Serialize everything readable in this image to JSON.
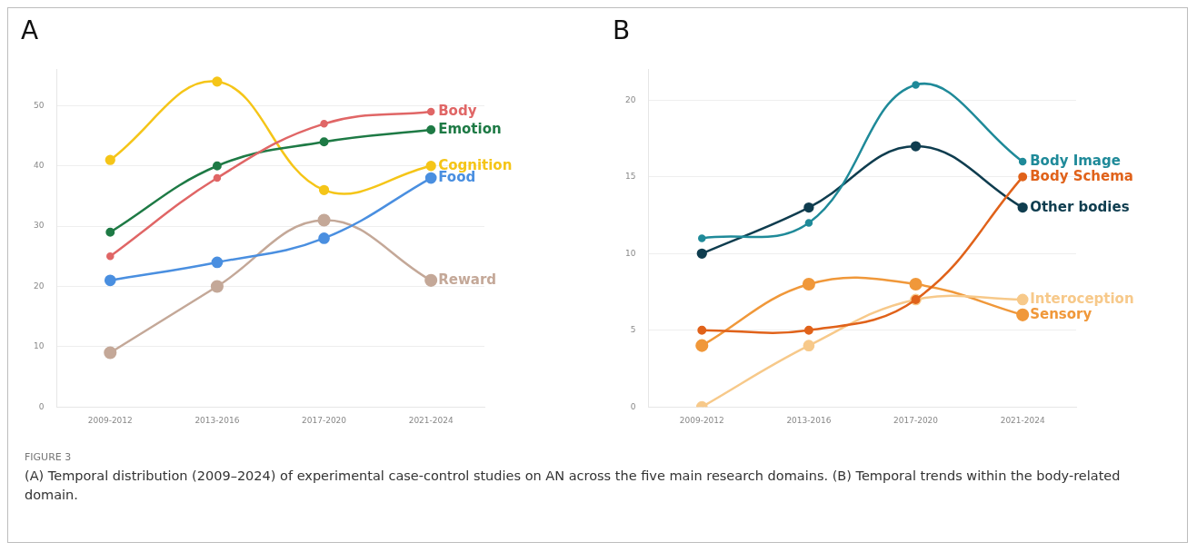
{
  "chart_data": [
    {
      "type": "line",
      "title": "A",
      "categories": [
        "2009-2012",
        "2013-2016",
        "2017-2020",
        "2021-2024"
      ],
      "ylim": [
        0,
        56
      ],
      "yticks": [
        0,
        10,
        20,
        30,
        40,
        50
      ],
      "grid": "y",
      "marker": "circle",
      "line_style": "solid",
      "series": [
        {
          "name": "Body",
          "color": "#e06666",
          "values": [
            25,
            38,
            47,
            49
          ]
        },
        {
          "name": "Emotion",
          "color": "#1e7a45",
          "values": [
            29,
            40,
            44,
            46
          ]
        },
        {
          "name": "Cognition",
          "color": "#f5c518",
          "values": [
            41,
            54,
            36,
            40
          ]
        },
        {
          "name": "Food",
          "color": "#4a8fe0",
          "values": [
            21,
            24,
            28,
            38
          ]
        },
        {
          "name": "Reward",
          "color": "#c4a898",
          "values": [
            9,
            20,
            31,
            21
          ]
        }
      ],
      "annotations": [
        "FIGURE 3",
        "(A) Temporal distribution (2009–2024) of experimental case-control studies on AN across the five main research domains. (B) Temporal trends within the body-related domain."
      ]
    },
    {
      "type": "line",
      "title": "B",
      "categories": [
        "2009-2012",
        "2013-2016",
        "2017-2020",
        "2021-2024"
      ],
      "ylim": [
        0,
        22
      ],
      "yticks": [
        0,
        5,
        10,
        15,
        20
      ],
      "grid": "y",
      "marker": "circle",
      "line_style": "solid",
      "series": [
        {
          "name": "Body Image",
          "color": "#1f8a99",
          "values": [
            11,
            12,
            21,
            16
          ]
        },
        {
          "name": "Body Schema",
          "color": "#e0621a",
          "values": [
            5,
            5,
            7,
            15
          ]
        },
        {
          "name": "Other bodies",
          "color": "#0f3d4f",
          "values": [
            10,
            13,
            17,
            13
          ]
        },
        {
          "name": "Interoception",
          "color": "#f7c98a",
          "values": [
            0,
            4,
            7,
            7
          ]
        },
        {
          "name": "Sensory",
          "color": "#f0983a",
          "values": [
            4,
            8,
            8,
            6
          ]
        }
      ]
    }
  ]
}
